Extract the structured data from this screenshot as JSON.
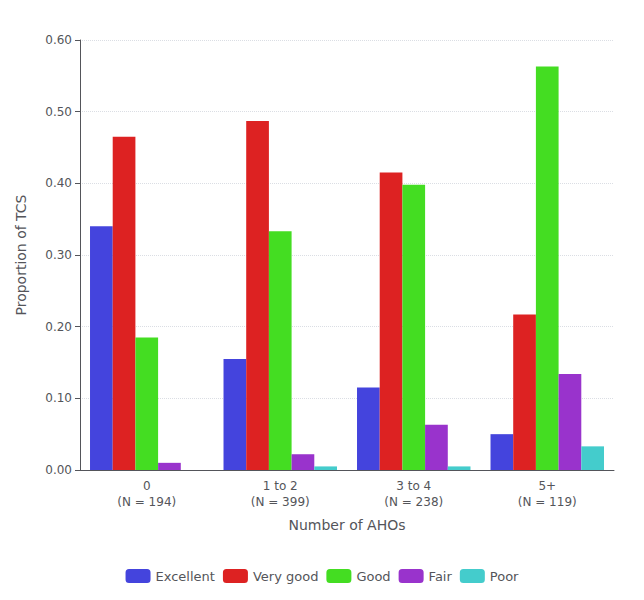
{
  "chart_data": {
    "type": "bar",
    "categories": [
      "0\n(N = 194)",
      "1 to 2\n(N = 399)",
      "3 to 4\n(N = 238)",
      "5+\n(N = 119)"
    ],
    "series": [
      {
        "name": "Excellent",
        "color": "#4444dd",
        "values": [
          0.34,
          0.155,
          0.115,
          0.05
        ]
      },
      {
        "name": "Very good",
        "color": "#dd2222",
        "values": [
          0.465,
          0.487,
          0.415,
          0.217
        ]
      },
      {
        "name": "Good",
        "color": "#44dd22",
        "values": [
          0.185,
          0.333,
          0.398,
          0.563
        ]
      },
      {
        "name": "Fair",
        "color": "#9933cc",
        "values": [
          0.01,
          0.022,
          0.063,
          0.134
        ]
      },
      {
        "name": "Poor",
        "color": "#44cccc",
        "values": [
          0.0,
          0.005,
          0.005,
          0.033
        ]
      }
    ],
    "xlabel": "Number of AHOs",
    "ylabel": "Proportion of TCS",
    "ylim": [
      0.0,
      0.6
    ],
    "yticks": [
      {
        "value": 0,
        "label": "0.00"
      },
      {
        "value": 0.1,
        "label": "0.10"
      },
      {
        "value": 0.2,
        "label": "0.20"
      },
      {
        "value": 0.3,
        "label": "0.30"
      },
      {
        "value": 0.4,
        "label": "0.40"
      },
      {
        "value": 0.5,
        "label": "0.50"
      },
      {
        "value": 0.6,
        "label": "0.60"
      }
    ],
    "grid": true,
    "legend": "bottom"
  }
}
